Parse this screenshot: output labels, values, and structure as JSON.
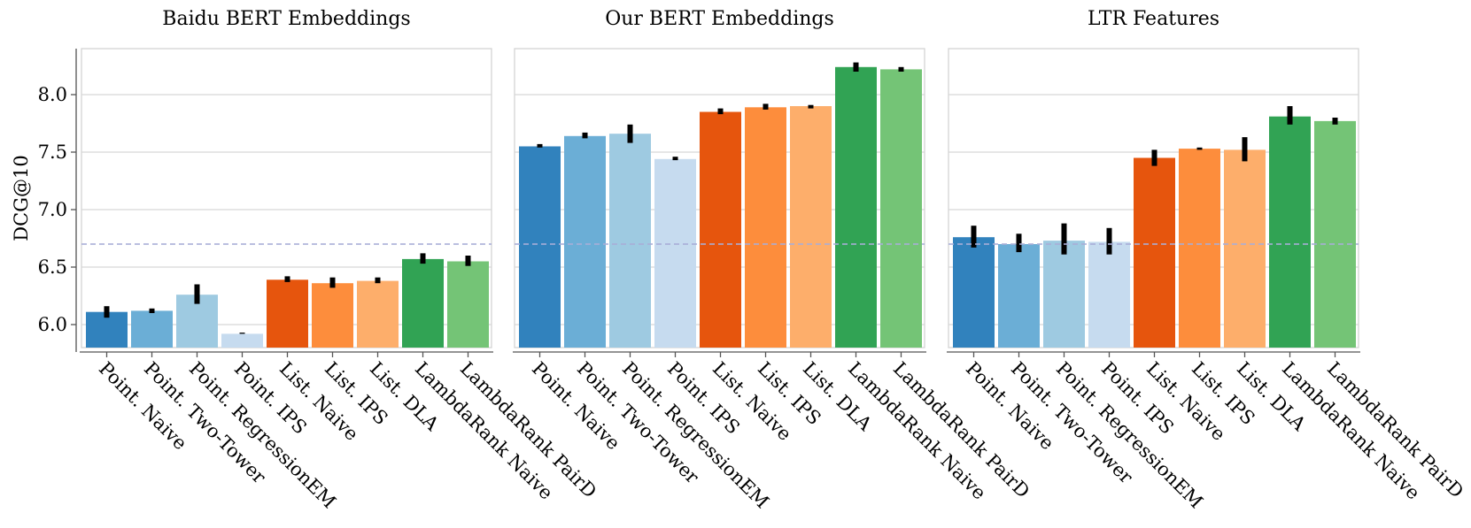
{
  "chart_data": {
    "type": "bar",
    "ylabel": "DCG@10",
    "ylim": [
      5.8,
      8.4
    ],
    "yticks": [
      6.0,
      6.5,
      7.0,
      7.5,
      8.0
    ],
    "ytick_labels": [
      "6.0",
      "6.5",
      "7.0",
      "7.5",
      "8.0"
    ],
    "reference_line": 6.7,
    "categories": [
      "Point. Naive",
      "Point. Two-Tower",
      "Point. RegressionEM",
      "Point. IPS",
      "List. Naive",
      "List. IPS",
      "List. DLA",
      "LambdaRank Naive",
      "LambdaRank PairD"
    ],
    "colors": [
      "#3182bd",
      "#6baed6",
      "#9ecae1",
      "#c6dbef",
      "#e6550d",
      "#fd8d3c",
      "#fdae6b",
      "#31a354",
      "#74c476"
    ],
    "panels": [
      {
        "title": "Baidu BERT Embeddings",
        "values": [
          6.11,
          6.12,
          6.26,
          5.92,
          6.39,
          6.36,
          6.38,
          6.57,
          6.55
        ],
        "err_low": [
          6.06,
          6.1,
          6.18,
          5.92,
          6.37,
          6.32,
          6.36,
          6.53,
          6.51
        ],
        "err_high": [
          6.16,
          6.14,
          6.35,
          5.93,
          6.42,
          6.41,
          6.41,
          6.62,
          6.6
        ]
      },
      {
        "title": "Our BERT Embeddings",
        "values": [
          7.55,
          7.64,
          7.66,
          7.44,
          7.85,
          7.89,
          7.9,
          8.24,
          8.22
        ],
        "err_low": [
          7.54,
          7.62,
          7.58,
          7.43,
          7.83,
          7.87,
          7.88,
          8.2,
          8.2
        ],
        "err_high": [
          7.57,
          7.67,
          7.74,
          7.46,
          7.88,
          7.92,
          7.91,
          8.28,
          8.24
        ]
      },
      {
        "title": "LTR Features",
        "values": [
          6.76,
          6.7,
          6.73,
          6.72,
          7.45,
          7.53,
          7.52,
          7.81,
          7.77
        ],
        "err_low": [
          6.67,
          6.63,
          6.61,
          6.61,
          7.38,
          7.52,
          7.42,
          7.74,
          7.74
        ],
        "err_high": [
          6.86,
          6.79,
          6.88,
          6.84,
          7.52,
          7.54,
          7.63,
          7.9,
          7.8
        ]
      }
    ]
  }
}
